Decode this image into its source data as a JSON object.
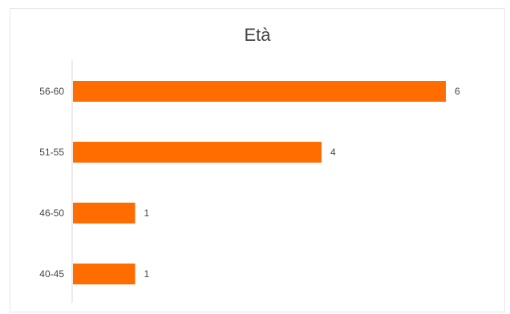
{
  "chart_data": {
    "type": "bar",
    "orientation": "horizontal",
    "title": "Età",
    "xlabel": "",
    "ylabel": "",
    "categories": [
      "56-60",
      "51-55",
      "46-50",
      "40-45"
    ],
    "values": [
      6,
      4,
      1,
      1
    ],
    "xlim": [
      0,
      6
    ],
    "grid": false,
    "legend": "none",
    "bar_color": "#FF6D00"
  }
}
